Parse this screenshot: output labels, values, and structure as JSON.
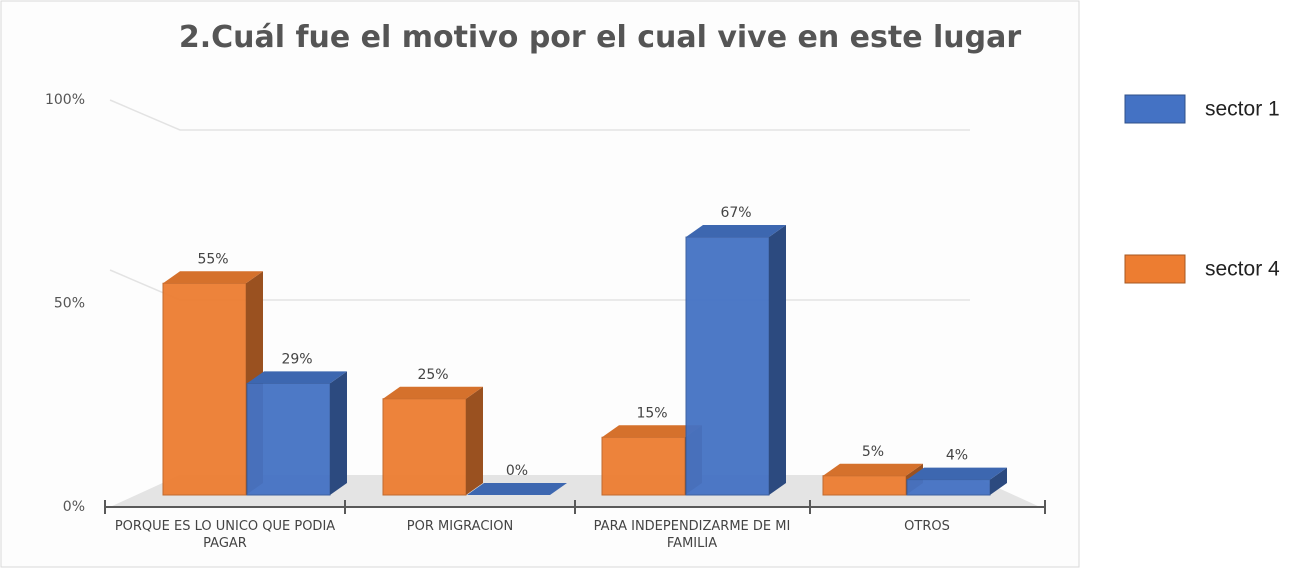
{
  "chart_data": {
    "type": "bar3d",
    "title": "2.Cuál fue el motivo por el cual vive en este lugar",
    "categories": [
      "PORQUE ES LO UNICO QUE PODIA PAGAR",
      "POR MIGRACION",
      "PARA INDEPENDIZARME DE MI FAMILIA",
      "OTROS"
    ],
    "series": [
      {
        "name": "sector 1",
        "color": "#4472c4",
        "values": [
          29,
          0,
          67,
          4
        ],
        "value_labels": [
          "29%",
          "0%",
          "67%",
          "4%"
        ]
      },
      {
        "name": "sector 4",
        "color": "#ed7d31",
        "values": [
          55,
          25,
          15,
          5
        ],
        "value_labels": [
          "55%",
          "25%",
          "15%",
          "5%"
        ]
      }
    ],
    "ylim": [
      0,
      100
    ],
    "yticks": [
      {
        "value": 0,
        "label": "0%"
      },
      {
        "value": 50,
        "label": "50%"
      },
      {
        "value": 100,
        "label": "100%"
      }
    ],
    "grid": true,
    "legend": "right"
  }
}
